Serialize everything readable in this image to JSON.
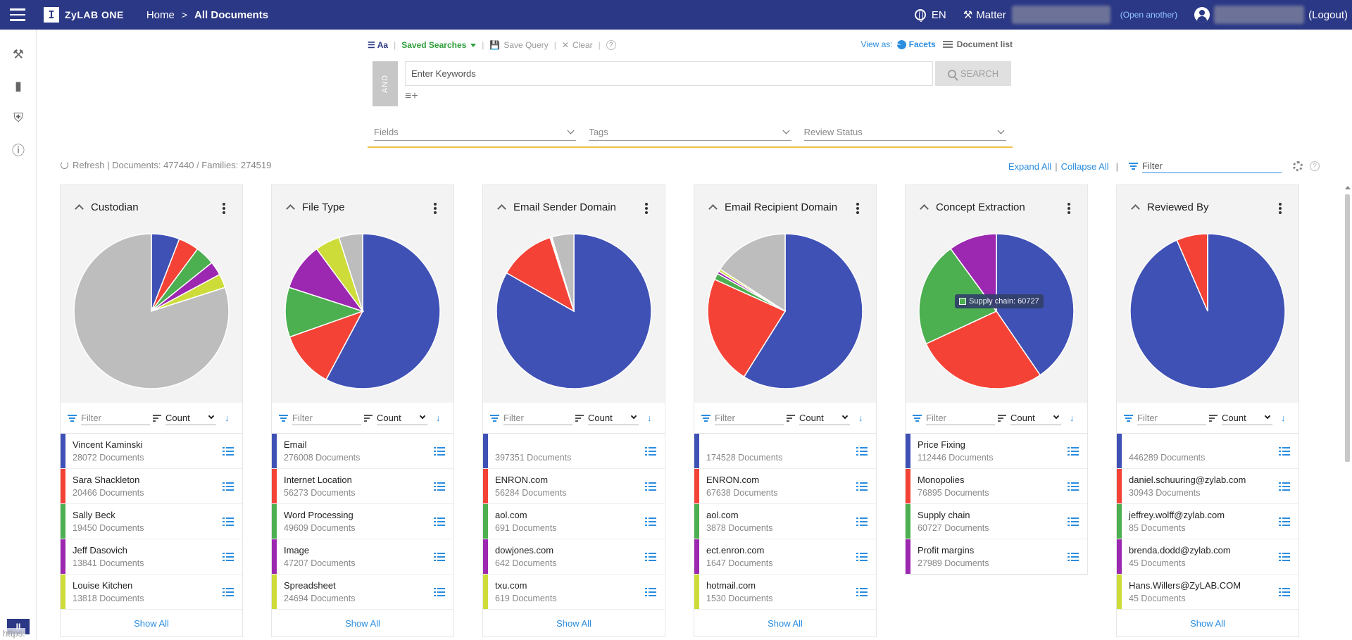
{
  "app": {
    "logo_text": "ZyLAB ONE",
    "logo_glyph": "I"
  },
  "breadcrumb": {
    "home": "Home",
    "separator": ">",
    "current": "All Documents"
  },
  "header": {
    "language": "EN",
    "matter_label": "Matter",
    "open_another": "(Open another)",
    "logout": "(Logout)"
  },
  "toolbar": {
    "aa": "Aa",
    "saved_searches": "Saved Searches",
    "save_query": "Save Query",
    "clear": "Clear",
    "help": "?",
    "view_as": "View as:",
    "facets": "Facets",
    "document_list": "Document list"
  },
  "search": {
    "operator": "AND",
    "placeholder": "Enter Keywords",
    "button": "SEARCH"
  },
  "filters": {
    "fields": "Fields",
    "tags": "Tags",
    "review_status": "Review Status"
  },
  "stats": {
    "text": "Refresh | Documents: 477440 / Families: 274519"
  },
  "tools": {
    "expand_all": "Expand All",
    "collapse_all": "Collapse All",
    "filter_placeholder": "Filter",
    "help": "?"
  },
  "colors": {
    "blue": "#3f51b5",
    "red": "#f44336",
    "green": "#4caf50",
    "purple": "#9c27b0",
    "lime": "#cddc39",
    "grey": "#bdbdbd"
  },
  "card_labels": {
    "filter": "Filter",
    "sort": "Count",
    "show_all": "Show All"
  },
  "cards": [
    {
      "title": "Custodian",
      "pie": [
        {
          "value": 28072,
          "color": "#3f51b5"
        },
        {
          "value": 20466,
          "color": "#f44336"
        },
        {
          "value": 19450,
          "color": "#4caf50"
        },
        {
          "value": 13841,
          "color": "#9c27b0"
        },
        {
          "value": 13818,
          "color": "#cddc39"
        },
        {
          "value": 381793,
          "color": "#bdbdbd"
        }
      ],
      "rows": [
        {
          "name": "Vincent Kaminski",
          "count": "28072 Documents",
          "color": "#3f51b5"
        },
        {
          "name": "Sara Shackleton",
          "count": "20466 Documents",
          "color": "#f44336"
        },
        {
          "name": "Sally Beck",
          "count": "19450 Documents",
          "color": "#4caf50"
        },
        {
          "name": "Jeff Dasovich",
          "count": "13841 Documents",
          "color": "#9c27b0"
        },
        {
          "name": "Louise Kitchen",
          "count": "13818 Documents",
          "color": "#cddc39"
        }
      ],
      "show_all": true
    },
    {
      "title": "File Type",
      "pie": [
        {
          "value": 276008,
          "color": "#3f51b5"
        },
        {
          "value": 56273,
          "color": "#f44336"
        },
        {
          "value": 49609,
          "color": "#4caf50"
        },
        {
          "value": 47207,
          "color": "#9c27b0"
        },
        {
          "value": 24694,
          "color": "#cddc39"
        },
        {
          "value": 23649,
          "color": "#bdbdbd"
        }
      ],
      "rows": [
        {
          "name": "Email",
          "count": "276008 Documents",
          "color": "#3f51b5"
        },
        {
          "name": "Internet Location",
          "count": "56273 Documents",
          "color": "#f44336"
        },
        {
          "name": "Word Processing",
          "count": "49609 Documents",
          "color": "#4caf50"
        },
        {
          "name": "Image",
          "count": "47207 Documents",
          "color": "#9c27b0"
        },
        {
          "name": "Spreadsheet",
          "count": "24694 Documents",
          "color": "#cddc39"
        }
      ],
      "show_all": true
    },
    {
      "title": "Email Sender Domain",
      "pie": [
        {
          "value": 397351,
          "color": "#3f51b5"
        },
        {
          "value": 56284,
          "color": "#f44336"
        },
        {
          "value": 691,
          "color": "#4caf50"
        },
        {
          "value": 642,
          "color": "#9c27b0"
        },
        {
          "value": 619,
          "color": "#cddc39"
        },
        {
          "value": 21853,
          "color": "#bdbdbd"
        }
      ],
      "rows": [
        {
          "name": "",
          "count": "397351 Documents",
          "color": "#3f51b5"
        },
        {
          "name": "ENRON.com",
          "count": "56284 Documents",
          "color": "#f44336"
        },
        {
          "name": "aol.com",
          "count": "691 Documents",
          "color": "#4caf50"
        },
        {
          "name": "dowjones.com",
          "count": "642 Documents",
          "color": "#9c27b0"
        },
        {
          "name": "txu.com",
          "count": "619 Documents",
          "color": "#cddc39"
        }
      ],
      "show_all": true
    },
    {
      "title": "Email Recipient Domain",
      "pie": [
        {
          "value": 174528,
          "color": "#3f51b5"
        },
        {
          "value": 67638,
          "color": "#f44336"
        },
        {
          "value": 3878,
          "color": "#4caf50"
        },
        {
          "value": 1647,
          "color": "#9c27b0"
        },
        {
          "value": 1530,
          "color": "#cddc39"
        },
        {
          "value": 47000,
          "color": "#bdbdbd"
        }
      ],
      "rows": [
        {
          "name": "",
          "count": "174528 Documents",
          "color": "#3f51b5"
        },
        {
          "name": "ENRON.com",
          "count": "67638 Documents",
          "color": "#f44336"
        },
        {
          "name": "aol.com",
          "count": "3878 Documents",
          "color": "#4caf50"
        },
        {
          "name": "ect.enron.com",
          "count": "1647 Documents",
          "color": "#9c27b0"
        },
        {
          "name": "hotmail.com",
          "count": "1530 Documents",
          "color": "#cddc39"
        }
      ],
      "show_all": true
    },
    {
      "title": "Concept Extraction",
      "pie": [
        {
          "value": 112446,
          "color": "#3f51b5"
        },
        {
          "value": 76895,
          "color": "#f44336"
        },
        {
          "value": 60727,
          "color": "#4caf50"
        },
        {
          "value": 27989,
          "color": "#9c27b0"
        }
      ],
      "tooltip": "Supply chain: 60727",
      "rows": [
        {
          "name": "Price Fixing",
          "count": "112446 Documents",
          "color": "#3f51b5"
        },
        {
          "name": "Monopolies",
          "count": "76895 Documents",
          "color": "#f44336"
        },
        {
          "name": "Supply chain",
          "count": "60727 Documents",
          "color": "#4caf50"
        },
        {
          "name": "Profit margins",
          "count": "27989 Documents",
          "color": "#9c27b0"
        }
      ],
      "show_all": false
    },
    {
      "title": "Reviewed By",
      "pie": [
        {
          "value": 446289,
          "color": "#3f51b5"
        },
        {
          "value": 30943,
          "color": "#f44336"
        },
        {
          "value": 85,
          "color": "#4caf50"
        },
        {
          "value": 45,
          "color": "#9c27b0"
        },
        {
          "value": 45,
          "color": "#cddc39"
        }
      ],
      "rows": [
        {
          "name": "",
          "count": "446289 Documents",
          "color": "#3f51b5"
        },
        {
          "name": "daniel.schuuring@zylab.com",
          "count": "30943 Documents",
          "color": "#f44336"
        },
        {
          "name": "jeffrey.wolff@zylab.com",
          "count": "85 Documents",
          "color": "#4caf50"
        },
        {
          "name": "brenda.dodd@zylab.com",
          "count": "45 Documents",
          "color": "#9c27b0"
        },
        {
          "name": "Hans.Willers@ZyLAB.COM",
          "count": "45 Documents",
          "color": "#cddc39"
        }
      ],
      "show_all": true
    }
  ],
  "rail": {
    "logo": "II",
    "url_hint": "https:"
  }
}
